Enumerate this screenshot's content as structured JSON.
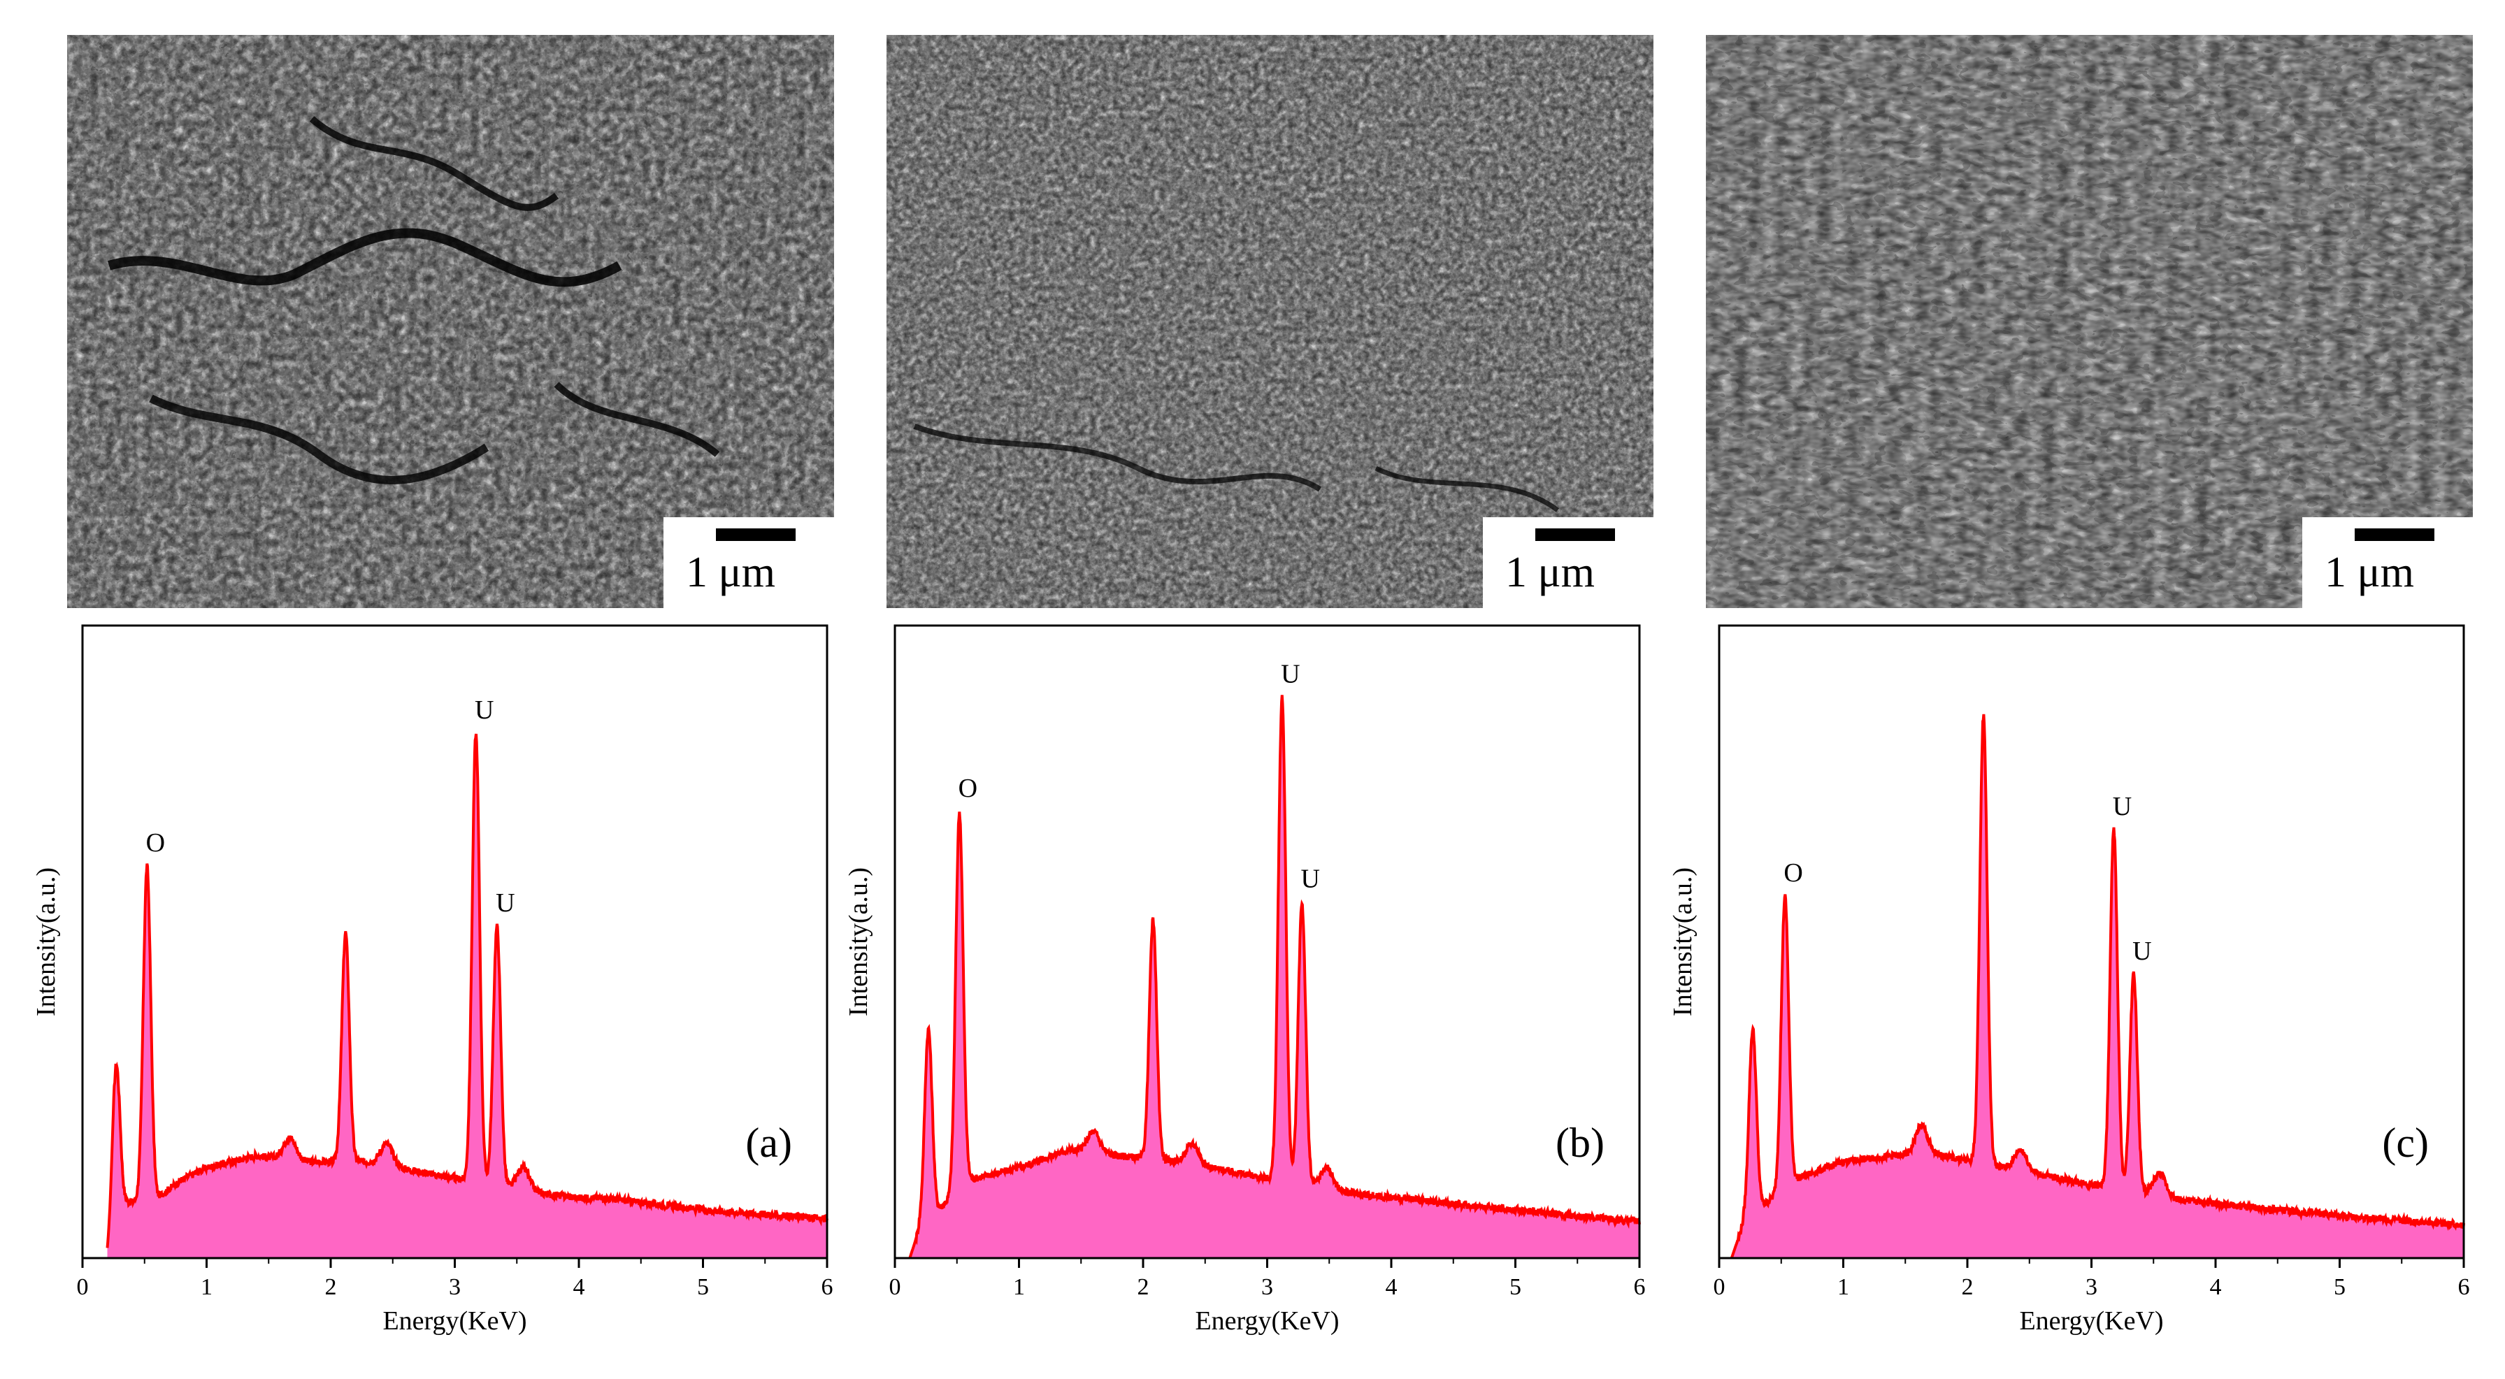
{
  "colors": {
    "spectrum_line": "#ff0000",
    "spectrum_fill": "#ff66c4",
    "axis": "#000000",
    "sem_background": "#2b2b2b"
  },
  "scale_bar_label": "1 μm",
  "chart_data": [
    {
      "type": "area",
      "panel_label": "(a)",
      "xlabel": "Energy(KeV)",
      "ylabel": "Intensity(a.u.)",
      "xlim": [
        0,
        6
      ],
      "ylim": [
        0,
        1.05
      ],
      "xticks": [
        0,
        1,
        2,
        3,
        4,
        5,
        6
      ],
      "legend": "none",
      "grid": false,
      "baseline": [
        [
          0.2,
          0.0
        ],
        [
          0.3,
          0.09
        ],
        [
          0.6,
          0.1
        ],
        [
          0.8,
          0.13
        ],
        [
          1.0,
          0.15
        ],
        [
          1.4,
          0.17
        ],
        [
          1.8,
          0.16
        ],
        [
          2.3,
          0.16
        ],
        [
          2.8,
          0.14
        ],
        [
          3.6,
          0.11
        ],
        [
          4.0,
          0.1
        ],
        [
          4.2,
          0.1
        ],
        [
          5.0,
          0.08
        ],
        [
          6.0,
          0.065
        ]
      ],
      "peaks": [
        {
          "x": 0.27,
          "y": 0.32,
          "label": ""
        },
        {
          "x": 0.52,
          "y": 0.65,
          "label": "O"
        },
        {
          "x": 1.67,
          "y": 0.2,
          "label": ""
        },
        {
          "x": 2.12,
          "y": 0.54,
          "label": ""
        },
        {
          "x": 2.45,
          "y": 0.19,
          "label": ""
        },
        {
          "x": 3.17,
          "y": 0.87,
          "label": "U"
        },
        {
          "x": 3.34,
          "y": 0.55,
          "label": "U"
        },
        {
          "x": 3.55,
          "y": 0.15,
          "label": ""
        }
      ]
    },
    {
      "type": "area",
      "panel_label": "(b)",
      "xlabel": "Energy(KeV)",
      "ylabel": "Intensity(a.u.)",
      "xlim": [
        0,
        6
      ],
      "ylim": [
        0,
        1.05
      ],
      "xticks": [
        0,
        1,
        2,
        3,
        4,
        5,
        6
      ],
      "legend": "none",
      "grid": false,
      "baseline": [
        [
          0.12,
          0.0
        ],
        [
          0.2,
          0.05
        ],
        [
          0.6,
          0.13
        ],
        [
          1.0,
          0.15
        ],
        [
          1.4,
          0.18
        ],
        [
          1.8,
          0.17
        ],
        [
          2.3,
          0.16
        ],
        [
          2.8,
          0.14
        ],
        [
          3.6,
          0.11
        ],
        [
          4.0,
          0.1
        ],
        [
          5.0,
          0.08
        ],
        [
          6.0,
          0.06
        ]
      ],
      "peaks": [
        {
          "x": 0.27,
          "y": 0.38,
          "label": ""
        },
        {
          "x": 0.52,
          "y": 0.74,
          "label": "O"
        },
        {
          "x": 1.6,
          "y": 0.21,
          "label": ""
        },
        {
          "x": 2.08,
          "y": 0.56,
          "label": ""
        },
        {
          "x": 2.4,
          "y": 0.19,
          "label": ""
        },
        {
          "x": 3.12,
          "y": 0.93,
          "label": "U"
        },
        {
          "x": 3.28,
          "y": 0.59,
          "label": "U"
        },
        {
          "x": 3.48,
          "y": 0.15,
          "label": ""
        }
      ]
    },
    {
      "type": "area",
      "panel_label": "(c)",
      "xlabel": "Energy(KeV)",
      "ylabel": "Intensity(a.u.)",
      "xlim": [
        0,
        6
      ],
      "ylim": [
        0,
        1.05
      ],
      "xticks": [
        0,
        1,
        2,
        3,
        4,
        5,
        6
      ],
      "legend": "none",
      "grid": false,
      "baseline": [
        [
          0.1,
          0.0
        ],
        [
          0.2,
          0.06
        ],
        [
          0.6,
          0.13
        ],
        [
          1.0,
          0.16
        ],
        [
          1.4,
          0.17
        ],
        [
          1.8,
          0.17
        ],
        [
          2.3,
          0.15
        ],
        [
          2.8,
          0.13
        ],
        [
          3.6,
          0.1
        ],
        [
          4.0,
          0.09
        ],
        [
          5.0,
          0.07
        ],
        [
          6.0,
          0.055
        ]
      ],
      "peaks": [
        {
          "x": 0.27,
          "y": 0.38,
          "label": ""
        },
        {
          "x": 0.53,
          "y": 0.6,
          "label": "O"
        },
        {
          "x": 1.63,
          "y": 0.22,
          "label": ""
        },
        {
          "x": 2.13,
          "y": 0.9,
          "label": ""
        },
        {
          "x": 2.43,
          "y": 0.18,
          "label": ""
        },
        {
          "x": 3.18,
          "y": 0.71,
          "label": "U"
        },
        {
          "x": 3.34,
          "y": 0.47,
          "label": "U"
        },
        {
          "x": 3.55,
          "y": 0.14,
          "label": ""
        }
      ]
    }
  ]
}
